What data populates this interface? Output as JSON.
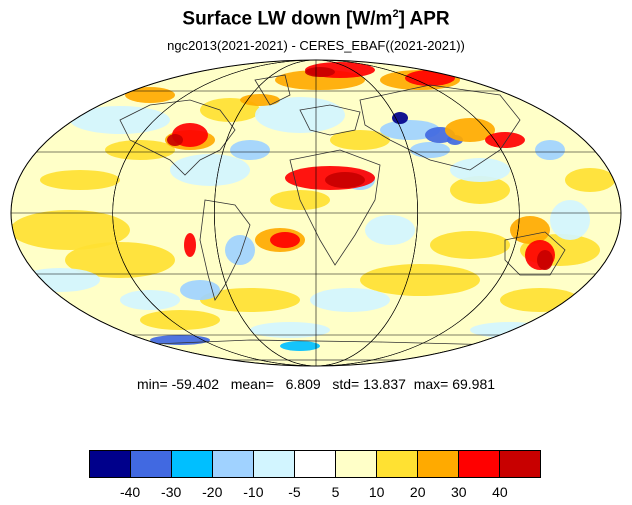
{
  "title": {
    "main": "Surface LW down [W/m",
    "sup": "2",
    "tail": "]  APR"
  },
  "subtitle": "ngc2013(2021-2021) - CERES_EBAF((2021-2021))",
  "stats": {
    "min_label": "min=",
    "min": "-59.402",
    "mean_label": "mean=",
    "mean": "6.809",
    "std_label": "std=",
    "std": "13.837",
    "max_label": "max=",
    "max": "69.981"
  },
  "colorbar": {
    "colors": [
      "#00008b",
      "#4169e1",
      "#00bfff",
      "#a0d2ff",
      "#d2f5ff",
      "#ffffff",
      "#ffffc8",
      "#ffe132",
      "#ffaa00",
      "#ff0000",
      "#c80000"
    ],
    "ticks": [
      "-40",
      "-30",
      "-20",
      "-10",
      "-5",
      "5",
      "10",
      "20",
      "30",
      "40"
    ]
  },
  "map": {
    "projection": "Mollweide",
    "grid": true,
    "colors": {
      "ocean_base": "#ffffc8",
      "pos_mid": "#ffe132",
      "pos_high": "#ffaa00",
      "pos_max": "#ff0000",
      "pos_ext": "#c80000",
      "neg_light": "#d2f5ff",
      "neg_mid": "#a0d2ff",
      "neg_high": "#00bfff",
      "neg_ext": "#4169e1",
      "neg_max": "#00008b",
      "white": "#ffffff",
      "coast": "#333333",
      "grid": "#000000"
    }
  }
}
